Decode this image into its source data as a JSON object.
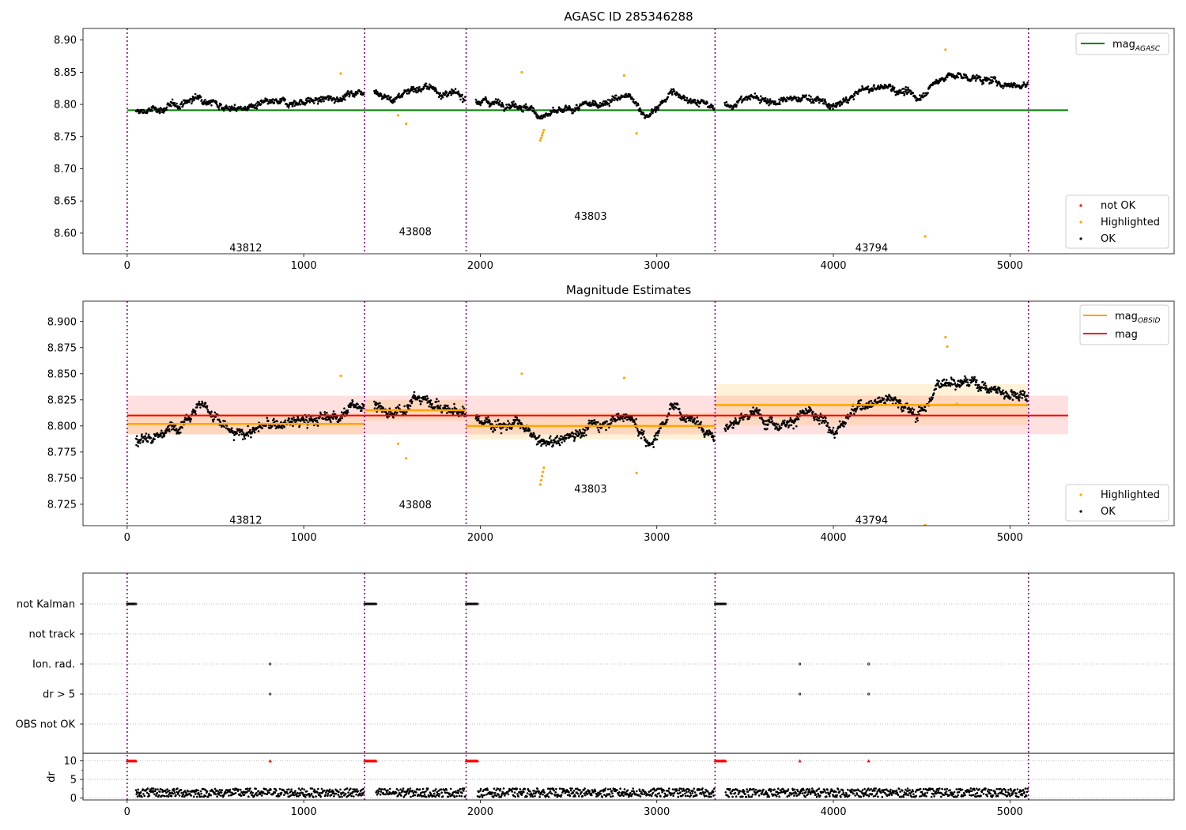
{
  "chart_data": [
    {
      "type": "scatter",
      "title": "AGASC ID 285346288",
      "xlim": [
        -250,
        5930
      ],
      "ylim": [
        8.568,
        8.918
      ],
      "xticks": [
        "0",
        "1000",
        "2000",
        "3000",
        "4000",
        "5000"
      ],
      "yticks": [
        "8.60",
        "8.65",
        "8.70",
        "8.75",
        "8.80",
        "8.85",
        "8.90"
      ],
      "observation_boundaries": [
        0,
        1345,
        1920,
        3330,
        5105
      ],
      "obsid_labels": [
        {
          "text": "43812",
          "x": 672,
          "y": 8.578
        },
        {
          "text": "43808",
          "x": 1632,
          "y": 8.603
        },
        {
          "text": "43803",
          "x": 2625,
          "y": 8.627
        },
        {
          "text": "43794",
          "x": 4217,
          "y": 8.578
        }
      ],
      "mag_agasc": {
        "value": 8.791,
        "x_range": [
          0,
          5330
        ],
        "color": "#008000"
      },
      "legend_top": {
        "position": "upper right",
        "label_main": "mag",
        "label_sub": "AGASC"
      },
      "legend_bottom": {
        "position": "lower right",
        "entries": [
          "not OK",
          "Highlighted",
          "OK"
        ]
      },
      "series": [
        {
          "name": "OK",
          "color": "#000000",
          "segments": [
            {
              "x": [
                50,
                1340
              ],
              "base": [
                8.787,
                8.795,
                8.812,
                8.792,
                8.8,
                8.804,
                8.808,
                8.822
              ]
            },
            {
              "x": [
                1400,
                1915
              ],
              "base": [
                8.823,
                8.806,
                8.825,
                8.826,
                8.815,
                8.812
              ]
            },
            {
              "x": [
                1975,
                3325
              ],
              "base": [
                8.805,
                8.803,
                8.801,
                8.782,
                8.788,
                8.797,
                8.805,
                8.812,
                8.78,
                8.818,
                8.808,
                8.793
              ]
            },
            {
              "x": [
                3385,
                5100
              ],
              "base": [
                8.797,
                8.812,
                8.803,
                8.812,
                8.795,
                8.822,
                8.828,
                8.81,
                8.845,
                8.842,
                8.833,
                8.83
              ]
            }
          ]
        },
        {
          "name": "Highlighted",
          "color": "#ffa500",
          "points": [
            [
              1210,
              8.848
            ],
            [
              1535,
              8.783
            ],
            [
              1580,
              8.77
            ],
            [
              2235,
              8.85
            ],
            [
              2340,
              8.744
            ],
            [
              2345,
              8.748
            ],
            [
              2350,
              8.752
            ],
            [
              2355,
              8.756
            ],
            [
              2360,
              8.76
            ],
            [
              2815,
              8.845
            ],
            [
              2885,
              8.755
            ],
            [
              4520,
              8.595
            ],
            [
              4635,
              8.885
            ]
          ]
        },
        {
          "name": "not OK",
          "color": "#ff0000",
          "points": []
        }
      ]
    },
    {
      "type": "scatter",
      "title": "Magnitude Estimates",
      "xlim": [
        -250,
        5930
      ],
      "ylim": [
        8.7045,
        8.9195
      ],
      "xticks": [
        "0",
        "1000",
        "2000",
        "3000",
        "4000",
        "5000"
      ],
      "yticks": [
        "8.725",
        "8.750",
        "8.775",
        "8.800",
        "8.825",
        "8.850",
        "8.875",
        "8.900"
      ],
      "observation_boundaries": [
        0,
        1345,
        1920,
        3330,
        5105
      ],
      "obsid_labels": [
        {
          "text": "43812",
          "x": 672,
          "y": 8.71
        },
        {
          "text": "43808",
          "x": 1632,
          "y": 8.725
        },
        {
          "text": "43803",
          "x": 2625,
          "y": 8.74
        },
        {
          "text": "43794",
          "x": 4217,
          "y": 8.71
        }
      ],
      "mag": {
        "value": 8.81,
        "band": [
          8.792,
          8.829
        ],
        "x_range": [
          0,
          5330
        ],
        "color": "#ff0000"
      },
      "mag_obsid": {
        "color": "#ffa500",
        "segments": [
          {
            "x": [
              0,
              1345
            ],
            "value": 8.802,
            "band": [
              8.792,
              8.812
            ]
          },
          {
            "x": [
              1345,
              1920
            ],
            "value": 8.815,
            "band": [
              8.805,
              8.825
            ]
          },
          {
            "x": [
              1920,
              3330
            ],
            "value": 8.8,
            "band": [
              8.787,
              8.813
            ]
          },
          {
            "x": [
              3330,
              5105
            ],
            "value": 8.82,
            "band": [
              8.801,
              8.84
            ]
          }
        ]
      },
      "legend_top": {
        "position": "upper right",
        "entries": [
          {
            "label_main": "mag",
            "label_sub": "OBSID"
          },
          {
            "label_main": "mag",
            "label_sub": ""
          }
        ]
      },
      "legend_bottom": {
        "position": "lower right",
        "entries": [
          "Highlighted",
          "OK"
        ]
      },
      "series": [
        {
          "name": "OK",
          "color": "#000000",
          "segments": [
            {
              "x": [
                50,
                1340
              ],
              "base": [
                8.787,
                8.795,
                8.823,
                8.79,
                8.8,
                8.804,
                8.808,
                8.822
              ]
            },
            {
              "x": [
                1400,
                1915
              ],
              "base": [
                8.823,
                8.806,
                8.825,
                8.826,
                8.815,
                8.812
              ]
            },
            {
              "x": [
                1975,
                3325
              ],
              "base": [
                8.805,
                8.803,
                8.801,
                8.782,
                8.788,
                8.797,
                8.805,
                8.812,
                8.78,
                8.818,
                8.808,
                8.793
              ]
            },
            {
              "x": [
                3385,
                5100
              ],
              "base": [
                8.797,
                8.812,
                8.803,
                8.812,
                8.795,
                8.822,
                8.828,
                8.81,
                8.845,
                8.842,
                8.833,
                8.83
              ]
            }
          ]
        },
        {
          "name": "Highlighted",
          "color": "#ffa500",
          "points": [
            [
              1210,
              8.848
            ],
            [
              1535,
              8.783
            ],
            [
              1580,
              8.769
            ],
            [
              2235,
              8.85
            ],
            [
              2340,
              8.744
            ],
            [
              2345,
              8.748
            ],
            [
              2350,
              8.752
            ],
            [
              2355,
              8.756
            ],
            [
              2360,
              8.76
            ],
            [
              2815,
              8.846
            ],
            [
              2885,
              8.755
            ],
            [
              4520,
              8.705
            ],
            [
              4635,
              8.885
            ],
            [
              4645,
              8.876
            ],
            [
              4700,
              8.821
            ]
          ]
        }
      ]
    },
    {
      "type": "scatter",
      "title": "",
      "xlim": [
        -250,
        5930
      ],
      "xticks": [
        "0",
        "1000",
        "2000",
        "3000",
        "4000",
        "5000"
      ],
      "observation_boundaries": [
        0,
        1345,
        1920,
        3330,
        5105
      ],
      "flag_rows": [
        "not Kalman",
        "not track",
        "Ion. rad.",
        "dr > 5",
        "OBS not OK"
      ],
      "flags": {
        "not Kalman": [
          [
            0,
            50
          ],
          [
            1345,
            1410
          ],
          [
            1920,
            1985
          ],
          [
            3330,
            3390
          ]
        ],
        "not track": [],
        "Ion. rad.": [
          [
            810,
            810
          ],
          [
            3810,
            3810
          ],
          [
            4200,
            4200
          ]
        ],
        "dr > 5": [
          [
            810,
            810
          ],
          [
            3810,
            3810
          ],
          [
            4200,
            4200
          ]
        ],
        "OBS not OK": []
      },
      "dr": {
        "ylabel": "dr",
        "ylim": [
          -0.5,
          11.8
        ],
        "yticks": [
          "0",
          "5",
          "10"
        ],
        "clip_value": 10,
        "ok_range": [
          0.3,
          2.6
        ],
        "ok_segments": [
          [
            50,
            1340
          ],
          [
            1410,
            1915
          ],
          [
            1985,
            3325
          ],
          [
            3390,
            5100
          ]
        ],
        "clipped_points": [
          [
            0,
            50
          ],
          [
            1345,
            1410
          ],
          [
            1920,
            1985
          ],
          [
            3330,
            3390
          ],
          [
            810,
            810
          ],
          [
            3810,
            3810
          ],
          [
            4200,
            4200
          ]
        ],
        "ok_color": "#000000",
        "clipped_color": "#ff0000"
      }
    }
  ]
}
